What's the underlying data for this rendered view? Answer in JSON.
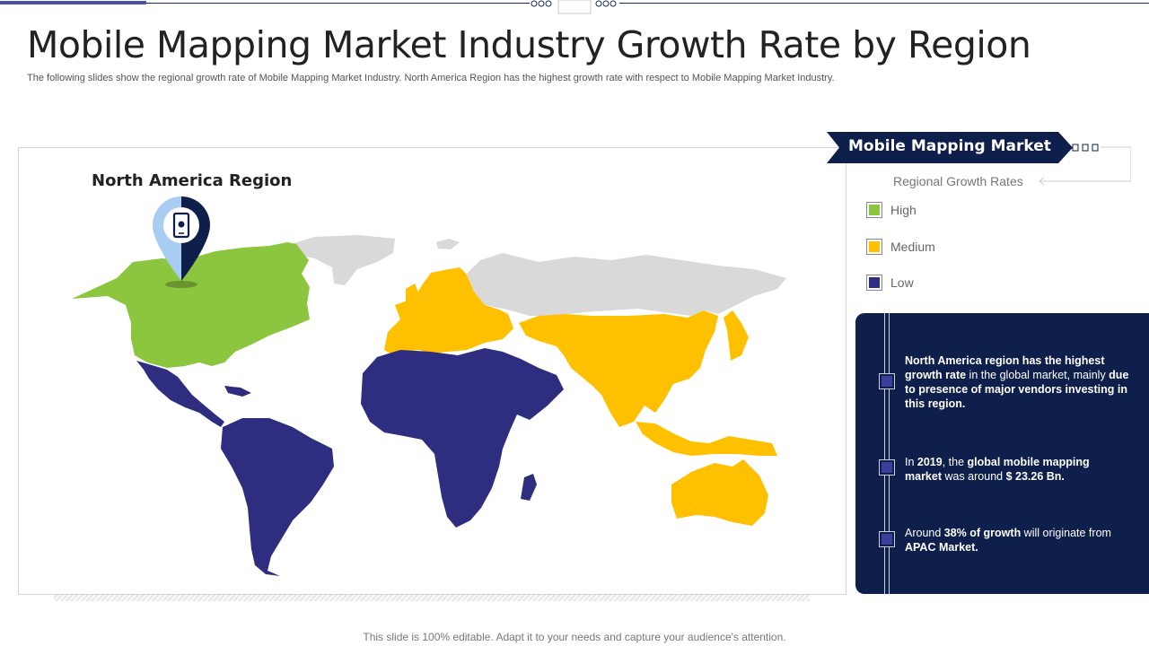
{
  "header": {
    "title": "Mobile Mapping Market Industry Growth Rate by Region",
    "subtitle": "The following slides show the regional growth rate of Mobile Mapping Market Industry. North America Region has the highest growth rate with respect to Mobile Mapping Market Industry."
  },
  "map": {
    "highlight_label": "North America Region",
    "pin_icon": "smartphone-icon",
    "regions": [
      {
        "name": "North America",
        "level": "High"
      },
      {
        "name": "Europe",
        "level": "Medium"
      },
      {
        "name": "Asia Pacific",
        "level": "Medium"
      },
      {
        "name": "Latin America",
        "level": "Low"
      },
      {
        "name": "Middle East & Africa",
        "level": "Low"
      }
    ]
  },
  "sidebar": {
    "banner_title": "Mobile Mapping Market",
    "legend_title": "Regional Growth Rates",
    "legend": [
      {
        "label": "High",
        "color": "#8cc63f"
      },
      {
        "label": "Medium",
        "color": "#ffc000"
      },
      {
        "label": "Low",
        "color": "#2e2d7f"
      }
    ]
  },
  "info": {
    "points": [
      {
        "parts": [
          {
            "text": "North America region has the highest growth rate",
            "bold": true
          },
          {
            "text": " in the global market, mainly ",
            "bold": false
          },
          {
            "text": "due to presence of major vendors investing in this region.",
            "bold": true
          }
        ]
      },
      {
        "parts": [
          {
            "text": "In ",
            "bold": false
          },
          {
            "text": "2019",
            "bold": true
          },
          {
            "text": ", the ",
            "bold": false
          },
          {
            "text": "global mobile mapping market",
            "bold": true
          },
          {
            "text": " was around ",
            "bold": false
          },
          {
            "text": " $ 23.26 Bn.",
            "bold": true
          }
        ]
      },
      {
        "parts": [
          {
            "text": "Around ",
            "bold": false
          },
          {
            "text": "38%  of growth",
            "bold": true
          },
          {
            "text": " will originate from ",
            "bold": false
          },
          {
            "text": "APAC Market.",
            "bold": true
          }
        ]
      }
    ]
  },
  "footer": {
    "note": "This slide is 100% editable. Adapt it to your needs and capture your audience's attention."
  },
  "colors": {
    "navy": "#0f1f4b",
    "high": "#8cc63f",
    "medium": "#ffc000",
    "low": "#2e2d7f",
    "neutral": "#d9d9d9"
  }
}
